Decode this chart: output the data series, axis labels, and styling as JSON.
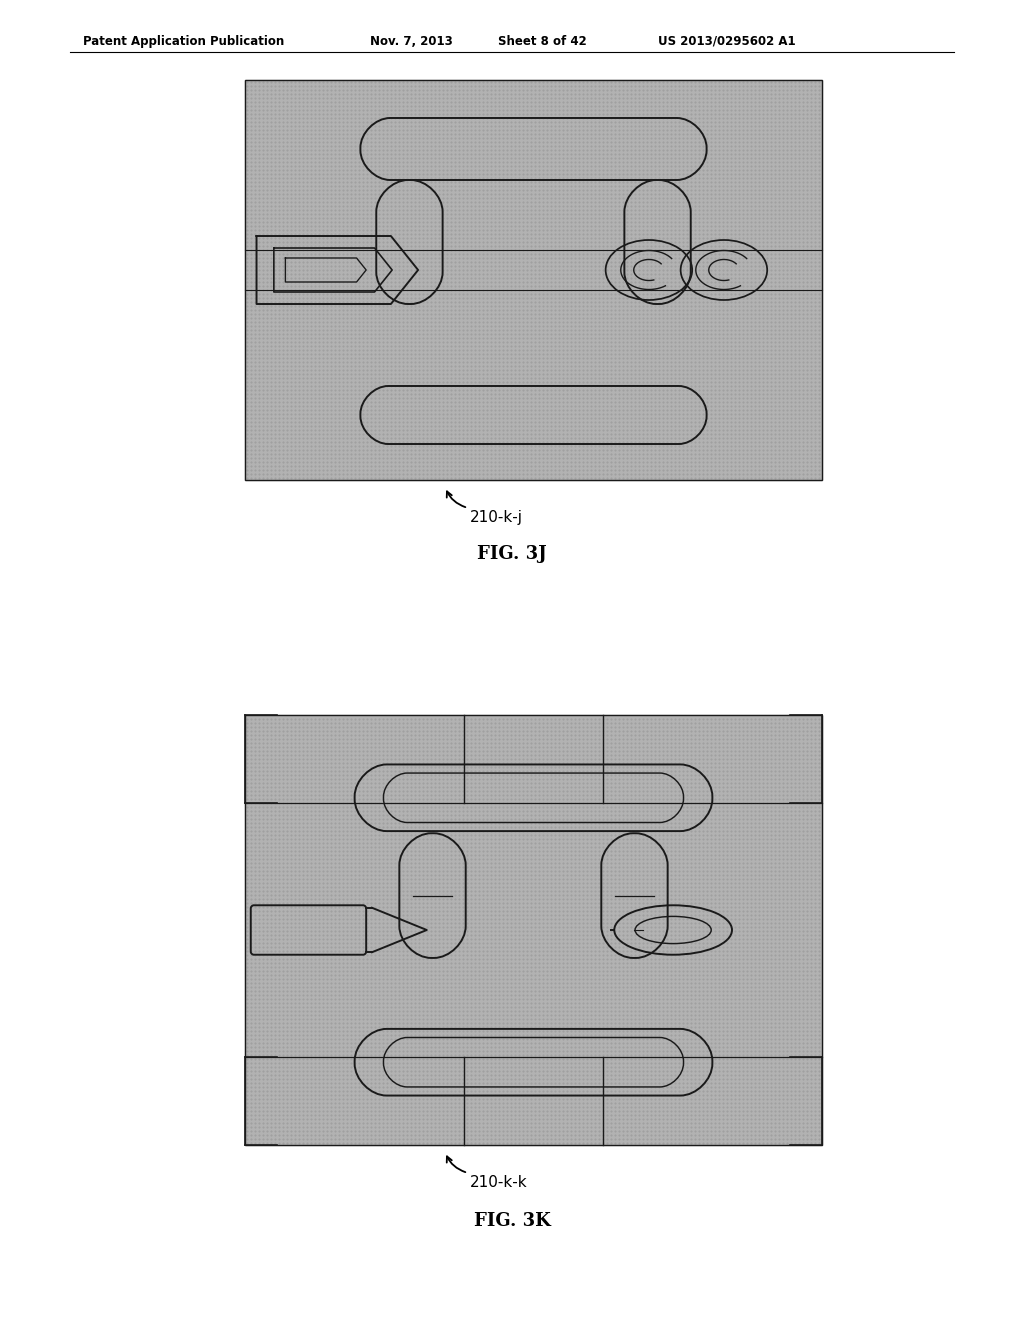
{
  "bg_color": "#ffffff",
  "chip_bg": "#b0b0b0",
  "line_color": "#1a1a1a",
  "line_width": 1.4,
  "header_text": "Patent Application Publication",
  "header_date": "Nov. 7, 2013",
  "header_sheet": "Sheet 8 of 42",
  "header_patent": "US 2013/0295602 A1",
  "fig1_label": "FIG. 3J",
  "fig1_ref": "210-k-j",
  "fig2_label": "FIG. 3K",
  "fig2_ref": "210-k-k"
}
